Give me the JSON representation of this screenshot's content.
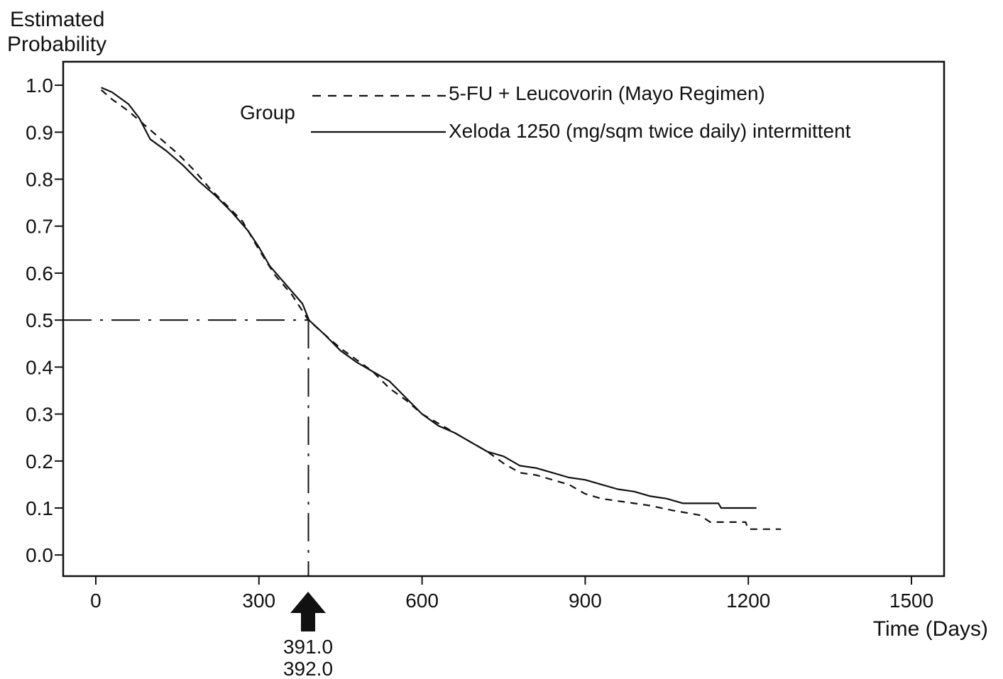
{
  "chart_data": {
    "type": "line",
    "title": "",
    "xlabel": "Time (Days)",
    "ylabel_lines": [
      "Estimated",
      "Probability"
    ],
    "xlim": [
      -60,
      1560
    ],
    "ylim": [
      -0.045,
      1.05
    ],
    "xticks": [
      0,
      300,
      600,
      900,
      1200,
      1500
    ],
    "yticks": [
      0.0,
      0.1,
      0.2,
      0.3,
      0.4,
      0.5,
      0.6,
      0.7,
      0.8,
      0.9,
      1.0
    ],
    "grid": false,
    "legend": {
      "title": "Group",
      "placement": "top-center"
    },
    "series": [
      {
        "name": "5-FU + Leucovorin (Mayo Regimen)",
        "style": "dashed",
        "color": "#111111",
        "points": [
          [
            10,
            0.99
          ],
          [
            30,
            0.97
          ],
          [
            60,
            0.945
          ],
          [
            90,
            0.915
          ],
          [
            120,
            0.885
          ],
          [
            150,
            0.855
          ],
          [
            180,
            0.82
          ],
          [
            210,
            0.78
          ],
          [
            240,
            0.745
          ],
          [
            270,
            0.71
          ],
          [
            300,
            0.65
          ],
          [
            330,
            0.595
          ],
          [
            360,
            0.555
          ],
          [
            391,
            0.5
          ],
          [
            420,
            0.47
          ],
          [
            450,
            0.44
          ],
          [
            480,
            0.415
          ],
          [
            510,
            0.39
          ],
          [
            540,
            0.355
          ],
          [
            570,
            0.33
          ],
          [
            600,
            0.3
          ],
          [
            630,
            0.28
          ],
          [
            660,
            0.26
          ],
          [
            690,
            0.24
          ],
          [
            720,
            0.22
          ],
          [
            750,
            0.195
          ],
          [
            780,
            0.175
          ],
          [
            810,
            0.17
          ],
          [
            840,
            0.16
          ],
          [
            870,
            0.15
          ],
          [
            900,
            0.13
          ],
          [
            930,
            0.12
          ],
          [
            960,
            0.115
          ],
          [
            990,
            0.11
          ],
          [
            1020,
            0.105
          ],
          [
            1060,
            0.095
          ],
          [
            1110,
            0.085
          ],
          [
            1130,
            0.07
          ],
          [
            1195,
            0.07
          ],
          [
            1200,
            0.055
          ],
          [
            1260,
            0.055
          ]
        ]
      },
      {
        "name": "Xeloda 1250 (mg/sqm twice daily) intermittent",
        "style": "solid",
        "color": "#111111",
        "points": [
          [
            10,
            0.995
          ],
          [
            30,
            0.985
          ],
          [
            60,
            0.96
          ],
          [
            80,
            0.93
          ],
          [
            100,
            0.885
          ],
          [
            130,
            0.86
          ],
          [
            160,
            0.83
          ],
          [
            190,
            0.795
          ],
          [
            220,
            0.765
          ],
          [
            250,
            0.73
          ],
          [
            280,
            0.69
          ],
          [
            300,
            0.655
          ],
          [
            320,
            0.615
          ],
          [
            350,
            0.575
          ],
          [
            380,
            0.535
          ],
          [
            392,
            0.5
          ],
          [
            420,
            0.47
          ],
          [
            450,
            0.435
          ],
          [
            480,
            0.41
          ],
          [
            510,
            0.39
          ],
          [
            540,
            0.37
          ],
          [
            570,
            0.335
          ],
          [
            600,
            0.3
          ],
          [
            630,
            0.275
          ],
          [
            660,
            0.26
          ],
          [
            690,
            0.24
          ],
          [
            720,
            0.22
          ],
          [
            750,
            0.21
          ],
          [
            780,
            0.19
          ],
          [
            810,
            0.185
          ],
          [
            840,
            0.175
          ],
          [
            870,
            0.165
          ],
          [
            900,
            0.16
          ],
          [
            930,
            0.15
          ],
          [
            960,
            0.14
          ],
          [
            990,
            0.135
          ],
          [
            1020,
            0.125
          ],
          [
            1050,
            0.12
          ],
          [
            1080,
            0.11
          ],
          [
            1145,
            0.11
          ],
          [
            1150,
            0.1
          ],
          [
            1215,
            0.1
          ]
        ]
      }
    ],
    "annotations": {
      "median_probability": 0.5,
      "median_x": 391,
      "median_labels": [
        "391.0",
        "392.0"
      ]
    }
  }
}
